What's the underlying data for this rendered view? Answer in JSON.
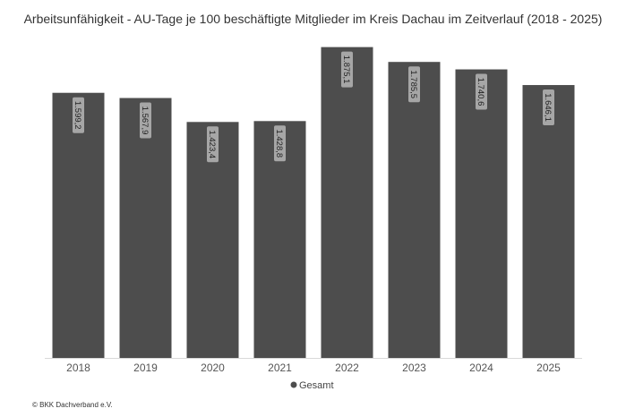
{
  "chart_data": {
    "type": "bar",
    "title": "Arbeitsunfähigkeit - AU-Tage je 100 beschäftigte Mitglieder im Kreis Dachau im Zeitverlauf (2018 - 2025)",
    "categories": [
      "2018",
      "2019",
      "2020",
      "2021",
      "2022",
      "2023",
      "2024",
      "2025"
    ],
    "series": [
      {
        "name": "Gesamt",
        "values": [
          1599.2,
          1567.9,
          1423.4,
          1428.8,
          1875.1,
          1785.5,
          1740.6,
          1646.1
        ],
        "labels": [
          "1.599,2",
          "1.567,9",
          "1.423,4",
          "1.428,8",
          "1.875,1",
          "1.785,5",
          "1.740,6",
          "1.646,1"
        ],
        "color": "#4d4d4d"
      }
    ],
    "ylim": [
      0,
      1900
    ],
    "grid": false,
    "legend_position": "bottom-center",
    "label_background": "#a6a6a6",
    "source": "© BKK Dachverband e.V."
  }
}
